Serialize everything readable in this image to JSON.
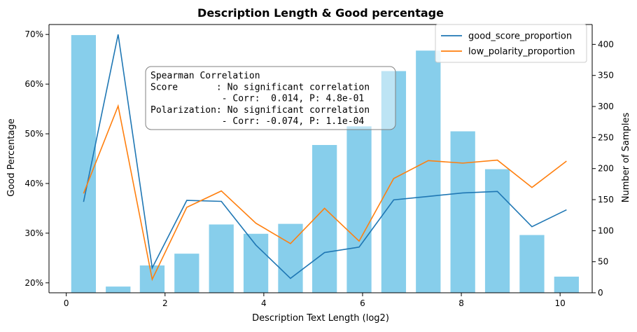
{
  "chart_data": {
    "type": "bar",
    "title": "Description Length & Good percentage",
    "xlabel": "Description Text Length (log2)",
    "ylabel": "Good Percentage",
    "y2label": "Number of Samples",
    "xlim": [
      -0.35,
      10.65
    ],
    "ylim": [
      0.18,
      0.72
    ],
    "y2lim": [
      0,
      432
    ],
    "x_ticks": [
      0,
      2,
      4,
      6,
      8,
      10
    ],
    "y_ticks": [
      {
        "value": 0.2,
        "label": "20%"
      },
      {
        "value": 0.3,
        "label": "30%"
      },
      {
        "value": 0.4,
        "label": "40%"
      },
      {
        "value": 0.5,
        "label": "50%"
      },
      {
        "value": 0.6,
        "label": "60%"
      },
      {
        "value": 0.7,
        "label": "70%"
      }
    ],
    "y2_ticks": [
      0,
      50,
      100,
      150,
      200,
      250,
      300,
      350,
      400
    ],
    "grid": false,
    "legend_position": "top-right",
    "bar_width": 0.5,
    "bars": {
      "name": "Number of Samples",
      "x": [
        0.35,
        1.05,
        1.74,
        2.44,
        3.14,
        3.84,
        4.54,
        5.23,
        5.93,
        6.63,
        7.33,
        8.03,
        8.73,
        9.43,
        10.13
      ],
      "values": [
        415,
        10,
        44,
        63,
        110,
        95,
        111,
        238,
        268,
        357,
        390,
        260,
        199,
        93,
        26
      ]
    },
    "series": [
      {
        "name": "good_score_proportion",
        "x": [
          0.35,
          1.05,
          1.74,
          2.44,
          3.14,
          3.84,
          4.54,
          5.23,
          5.93,
          6.63,
          7.33,
          8.03,
          8.73,
          9.43,
          10.13
        ],
        "values": [
          0.363,
          0.7,
          0.23,
          0.366,
          0.364,
          0.276,
          0.209,
          0.261,
          0.272,
          0.367,
          0.374,
          0.381,
          0.384,
          0.313,
          0.347
        ]
      },
      {
        "name": "low_polarity_proportion",
        "x": [
          0.35,
          1.05,
          1.74,
          2.44,
          3.14,
          3.84,
          4.54,
          5.23,
          5.93,
          6.63,
          7.33,
          8.03,
          8.73,
          9.43,
          10.13
        ],
        "values": [
          0.38,
          0.556,
          0.207,
          0.352,
          0.385,
          0.32,
          0.279,
          0.35,
          0.284,
          0.41,
          0.446,
          0.441,
          0.447,
          0.392,
          0.445
        ]
      }
    ],
    "annotation": {
      "lines": [
        "Spearman Correlation",
        "Score       : No significant correlation",
        "             - Corr:  0.014, P: 4.8e-01",
        "Polarization: No significant correlation",
        "             - Corr: -0.074, P: 1.1e-04"
      ]
    },
    "colors": {
      "bars": "#87ceeb",
      "good_score_proportion": "#1f77b4",
      "low_polarity_proportion": "#ff7f0e",
      "axes": "#000000",
      "annotation_border": "#808080"
    }
  }
}
